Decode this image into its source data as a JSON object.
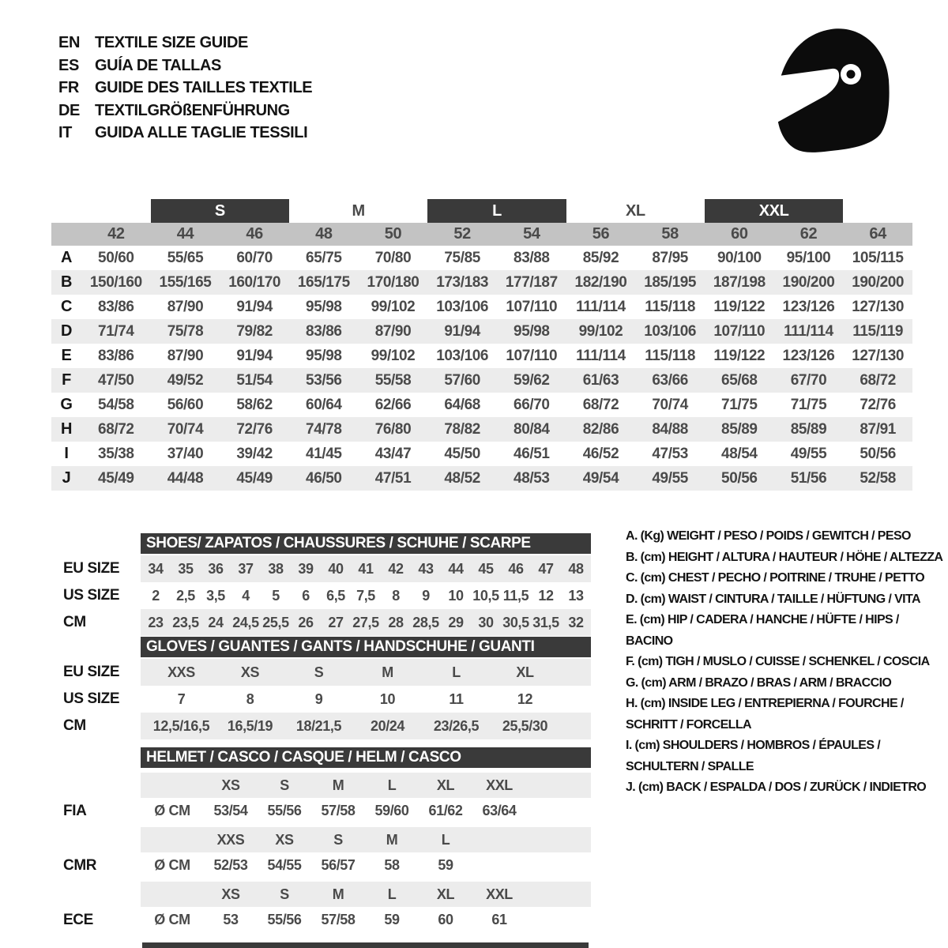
{
  "colors": {
    "dark_bar": "#3a3a3a",
    "number_band": "#c3c3c3",
    "stripe": "#ececec",
    "title_text": "#ffffff",
    "value_text": "#4a4a4a",
    "heading_text": "#131313"
  },
  "header": {
    "languages": [
      {
        "code": "EN",
        "title": "TEXTILE SIZE GUIDE"
      },
      {
        "code": "ES",
        "title": "GUÍA DE TALLAS"
      },
      {
        "code": "FR",
        "title": "GUIDE DES TAILLES TEXTILE"
      },
      {
        "code": "DE",
        "title": "TEXTILGRÖßENFÜHRUNG"
      },
      {
        "code": "IT",
        "title": "GUIDA ALLE TAGLIE TESSILI"
      }
    ],
    "logo": "racing-helmet-icon"
  },
  "main_table": {
    "groups": [
      {
        "label": "S",
        "dark": true
      },
      {
        "label": "M",
        "dark": false
      },
      {
        "label": "L",
        "dark": true
      },
      {
        "label": "XL",
        "dark": false
      },
      {
        "label": "XXL",
        "dark": true
      }
    ],
    "sizes": [
      "42",
      "44",
      "46",
      "48",
      "50",
      "52",
      "54",
      "56",
      "58",
      "60",
      "62",
      "64"
    ],
    "rows": [
      {
        "letter": "A",
        "values": [
          "50/60",
          "55/65",
          "60/70",
          "65/75",
          "70/80",
          "75/85",
          "83/88",
          "85/92",
          "87/95",
          "90/100",
          "95/100",
          "105/115"
        ]
      },
      {
        "letter": "B",
        "values": [
          "150/160",
          "155/165",
          "160/170",
          "165/175",
          "170/180",
          "173/183",
          "177/187",
          "182/190",
          "185/195",
          "187/198",
          "190/200",
          "190/200"
        ]
      },
      {
        "letter": "C",
        "values": [
          "83/86",
          "87/90",
          "91/94",
          "95/98",
          "99/102",
          "103/106",
          "107/110",
          "111/114",
          "115/118",
          "119/122",
          "123/126",
          "127/130"
        ]
      },
      {
        "letter": "D",
        "values": [
          "71/74",
          "75/78",
          "79/82",
          "83/86",
          "87/90",
          "91/94",
          "95/98",
          "99/102",
          "103/106",
          "107/110",
          "111/114",
          "115/119"
        ]
      },
      {
        "letter": "E",
        "values": [
          "83/86",
          "87/90",
          "91/94",
          "95/98",
          "99/102",
          "103/106",
          "107/110",
          "111/114",
          "115/118",
          "119/122",
          "123/126",
          "127/130"
        ]
      },
      {
        "letter": "F",
        "values": [
          "47/50",
          "49/52",
          "51/54",
          "53/56",
          "55/58",
          "57/60",
          "59/62",
          "61/63",
          "63/66",
          "65/68",
          "67/70",
          "68/72"
        ]
      },
      {
        "letter": "G",
        "values": [
          "54/58",
          "56/60",
          "58/62",
          "60/64",
          "62/66",
          "64/68",
          "66/70",
          "68/72",
          "70/74",
          "71/75",
          "71/75",
          "72/76"
        ]
      },
      {
        "letter": "H",
        "values": [
          "68/72",
          "70/74",
          "72/76",
          "74/78",
          "76/80",
          "78/82",
          "80/84",
          "82/86",
          "84/88",
          "85/89",
          "85/89",
          "87/91"
        ]
      },
      {
        "letter": "I",
        "values": [
          "35/38",
          "37/40",
          "39/42",
          "41/45",
          "43/47",
          "45/50",
          "46/51",
          "46/52",
          "47/53",
          "48/54",
          "49/55",
          "50/56"
        ]
      },
      {
        "letter": "J",
        "values": [
          "45/49",
          "44/48",
          "45/49",
          "46/50",
          "47/51",
          "48/52",
          "48/53",
          "49/54",
          "49/55",
          "50/56",
          "51/56",
          "52/58"
        ]
      }
    ]
  },
  "shoes": {
    "title": "SHOES/ ZAPATOS / CHAUSSURES / SCHUHE / SCARPE",
    "rows": [
      {
        "label": "EU SIZE",
        "gray": true,
        "values": [
          "34",
          "35",
          "36",
          "37",
          "38",
          "39",
          "40",
          "41",
          "42",
          "43",
          "44",
          "45",
          "46",
          "47",
          "48"
        ]
      },
      {
        "label": "US SIZE",
        "gray": false,
        "values": [
          "2",
          "2,5",
          "3,5",
          "4",
          "5",
          "6",
          "6,5",
          "7,5",
          "8",
          "9",
          "10",
          "10,5",
          "11,5",
          "12",
          "13"
        ]
      },
      {
        "label": "CM",
        "gray": true,
        "values": [
          "23",
          "23,5",
          "24",
          "24,5",
          "25,5",
          "26",
          "27",
          "27,5",
          "28",
          "28,5",
          "29",
          "30",
          "30,5",
          "31,5",
          "32"
        ]
      }
    ]
  },
  "gloves": {
    "title": "GLOVES / GUANTES / GANTS / HANDSCHUHE / GUANTI",
    "rows": [
      {
        "label": "EU SIZE",
        "gray": true,
        "values": [
          "XXS",
          "XS",
          "S",
          "M",
          "L",
          "XL"
        ]
      },
      {
        "label": "US SIZE",
        "gray": false,
        "values": [
          "7",
          "8",
          "9",
          "10",
          "11",
          "12"
        ]
      },
      {
        "label": "CM",
        "gray": true,
        "values": [
          "12,5/16,5",
          "16,5/19",
          "18/21,5",
          "20/24",
          "23/26,5",
          "25,5/30"
        ]
      }
    ]
  },
  "helmet": {
    "title": "HELMET / CASCO / CASQUE / HELM / CASCO",
    "sections": [
      {
        "label": "FIA",
        "unit": "Ø CM",
        "sizes": [
          "XS",
          "S",
          "M",
          "L",
          "XL",
          "XXL"
        ],
        "values": [
          "53/54",
          "55/56",
          "57/58",
          "59/60",
          "61/62",
          "63/64"
        ]
      },
      {
        "label": "CMR",
        "unit": "Ø CM",
        "sizes": [
          "XXS",
          "XS",
          "S",
          "M",
          "L",
          ""
        ],
        "values": [
          "52/53",
          "54/55",
          "56/57",
          "58",
          "59",
          ""
        ]
      },
      {
        "label": "ECE",
        "unit": "Ø CM",
        "sizes": [
          "XS",
          "S",
          "M",
          "L",
          "XL",
          "XXL"
        ],
        "values": [
          "53",
          "55/56",
          "57/58",
          "59",
          "60",
          "61"
        ]
      }
    ]
  },
  "legend": {
    "items": [
      "A. (Kg) WEIGHT / PESO / POIDS / GEWITCH / PESO",
      "B. (cm) HEIGHT / ALTURA / HAUTEUR / HÖHE / ALTEZZA",
      "C. (cm) CHEST / PECHO / POITRINE / TRUHE / PETTO",
      "D. (cm) WAIST / CINTURA / TAILLE / HÜFTUNG / VITA",
      "E. (cm) HIP / CADERA / HANCHE / HÜFTE / HIPS / BACINO",
      "F. (cm) TIGH / MUSLO / CUISSE / SCHENKEL / COSCIA",
      "G. (cm) ARM / BRAZO / BRAS / ARM / BRACCIO",
      "H. (cm) INSIDE LEG / ENTREPIERNA / FOURCHE / SCHRITT / FORCELLA",
      "I. (cm) SHOULDERS / HOMBROS / ÉPAULES / SCHULTERN / SPALLE",
      "J. (cm) BACK / ESPALDA / DOS / ZURÜCK / INDIETRO"
    ]
  }
}
